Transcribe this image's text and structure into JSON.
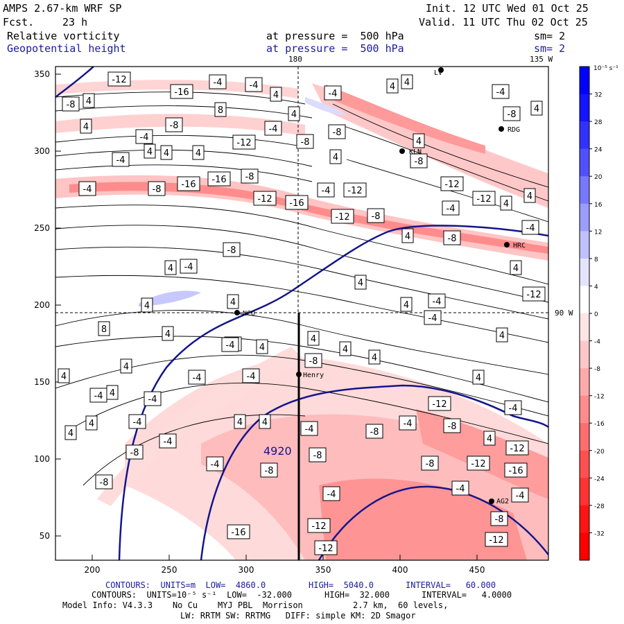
{
  "header": {
    "model": "AMPS 2.67-km WRF SP",
    "forecast_label": "Fcst.",
    "forecast_hours": "23 h",
    "init": "Init. 12 UTC Wed 01 Oct 25",
    "valid": "Valid. 11 UTC Thu 02 Oct 25",
    "field1": "Relative vorticity",
    "field1_level": "at pressure =  500 hPa",
    "field1_sm": "sm= 2",
    "field2": "Geopotential height",
    "field2_level": "at pressure =  500 hPa",
    "field2_sm": "sm= 2"
  },
  "map": {
    "x_ticks": [
      "200",
      "250",
      "300",
      "350",
      "400",
      "450"
    ],
    "y_ticks": [
      "350",
      "300",
      "250",
      "200",
      "150",
      "100",
      "50"
    ],
    "meridian_180": "180",
    "meridian_135w": "135 W",
    "meridian_90w": "90 W",
    "stations": [
      {
        "name": "LV",
        "label": "LV"
      },
      {
        "name": "RDG",
        "label": "RDG"
      },
      {
        "name": "KLN",
        "label": "KLN"
      },
      {
        "name": "HRC",
        "label": "HRC"
      },
      {
        "name": "NCO",
        "label": "NCO"
      },
      {
        "name": "Henry",
        "label": "Henry"
      },
      {
        "name": "AG2",
        "label": "AG2"
      }
    ],
    "height_label": "4920",
    "vorticity_labels": [
      "-4",
      "4",
      "-4",
      "-4",
      "4",
      "-8",
      "-4",
      "4",
      "4",
      "4",
      "-4",
      "8",
      "4",
      "-8",
      "4",
      "-4",
      "-8",
      "-8",
      "4",
      "-8",
      "4",
      "-4",
      "-12",
      "4",
      "4",
      "-4",
      "4",
      "4",
      "-8",
      "-4",
      "-12",
      "-8",
      "-16",
      "-16",
      "-8",
      "-12",
      "-16",
      "-4",
      "4",
      "-12",
      "-8",
      "4",
      "-4",
      "-12",
      "-12",
      "-4",
      "4",
      "-8",
      "-8",
      "4",
      "-12",
      "-4",
      "4",
      "4",
      "4",
      "-4",
      "4",
      "4",
      "-4",
      "8",
      "4",
      "4",
      "4",
      "4",
      "4",
      "-4",
      "4",
      "-4",
      "-4",
      "-4",
      "4",
      "4",
      "-8",
      "4",
      "4",
      "-4",
      "-4",
      "-4",
      "4",
      "4",
      "4",
      "4",
      "-4",
      "-8",
      "-4",
      "-8",
      "-12",
      "-4",
      "4",
      "-4",
      "-8",
      "-8",
      "-8",
      "-12",
      "-12",
      "-4",
      "-8",
      "-4",
      "-8",
      "-16",
      "-4",
      "-4",
      "-8",
      "-12",
      "-12",
      "-12",
      "-16",
      "-12",
      "-16",
      "-4"
    ]
  },
  "colorbar": {
    "units": "10⁻⁵ s⁻¹",
    "levels": [
      "32",
      "28",
      "24",
      "20",
      "16",
      "12",
      "8",
      "4",
      "0",
      "-4",
      "-8",
      "-12",
      "-16",
      "-20",
      "-24",
      "-28",
      "-32"
    ],
    "colors": [
      "#0000ff",
      "#1414ff",
      "#3232ff",
      "#5050ff",
      "#7878ff",
      "#9c9cff",
      "#c0c0ff",
      "#e4e4ff",
      "#ffffff",
      "#ffe4e4",
      "#ffc8c8",
      "#ffaaaa",
      "#ff8c8c",
      "#ff6e6e",
      "#ff5050",
      "#ff3232",
      "#ff1414",
      "#ff0000"
    ]
  },
  "footer": {
    "line1_a": "CONTOURS:  UNITS=m  LOW=  4860.0",
    "line1_b": "HIGH=  5040.0",
    "line1_c": "INTERVAL=   60.000",
    "line2_a": "CONTOURS:  UNITS=10⁻⁵ s⁻¹  LOW=  -32.000",
    "line2_b": "HIGH=  32.000",
    "line2_c": "INTERVAL=   4.0000",
    "line3": "Model Info: V4.3.3    No Cu    MYJ PBL  Morrison          2.7 km,  60 levels,",
    "line4": "LW: RRTM SW: RRTMG   DIFF: simple KM: 2D Smagor"
  }
}
